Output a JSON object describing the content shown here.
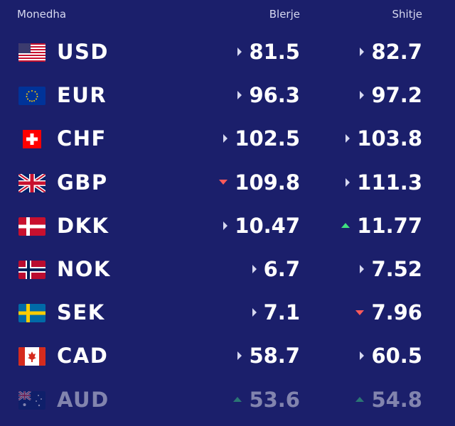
{
  "header": {
    "currency": "Monedha",
    "buy": "Blerje",
    "sell": "Shitje"
  },
  "colors": {
    "background": "#1b1f6b",
    "up": "#3fe07f",
    "down": "#ff5a5a",
    "neutral": "#d6d8f0"
  },
  "rows": [
    {
      "code": "USD",
      "flag_icon": "us-flag-icon",
      "buy": "81.5",
      "buy_trend": "neutral",
      "sell": "82.7",
      "sell_trend": "neutral"
    },
    {
      "code": "EUR",
      "flag_icon": "eu-flag-icon",
      "buy": "96.3",
      "buy_trend": "neutral",
      "sell": "97.2",
      "sell_trend": "neutral"
    },
    {
      "code": "CHF",
      "flag_icon": "ch-flag-icon",
      "buy": "102.5",
      "buy_trend": "neutral",
      "sell": "103.8",
      "sell_trend": "neutral"
    },
    {
      "code": "GBP",
      "flag_icon": "gb-flag-icon",
      "buy": "109.8",
      "buy_trend": "down",
      "sell": "111.3",
      "sell_trend": "neutral"
    },
    {
      "code": "DKK",
      "flag_icon": "dk-flag-icon",
      "buy": "10.47",
      "buy_trend": "neutral",
      "sell": "11.77",
      "sell_trend": "up"
    },
    {
      "code": "NOK",
      "flag_icon": "no-flag-icon",
      "buy": "6.7",
      "buy_trend": "neutral",
      "sell": "7.52",
      "sell_trend": "neutral"
    },
    {
      "code": "SEK",
      "flag_icon": "se-flag-icon",
      "buy": "7.1",
      "buy_trend": "neutral",
      "sell": "7.96",
      "sell_trend": "down"
    },
    {
      "code": "CAD",
      "flag_icon": "ca-flag-icon",
      "buy": "58.7",
      "buy_trend": "neutral",
      "sell": "60.5",
      "sell_trend": "neutral"
    },
    {
      "code": "AUD",
      "flag_icon": "au-flag-icon",
      "buy": "53.6",
      "buy_trend": "up",
      "sell": "54.8",
      "sell_trend": "up"
    }
  ]
}
